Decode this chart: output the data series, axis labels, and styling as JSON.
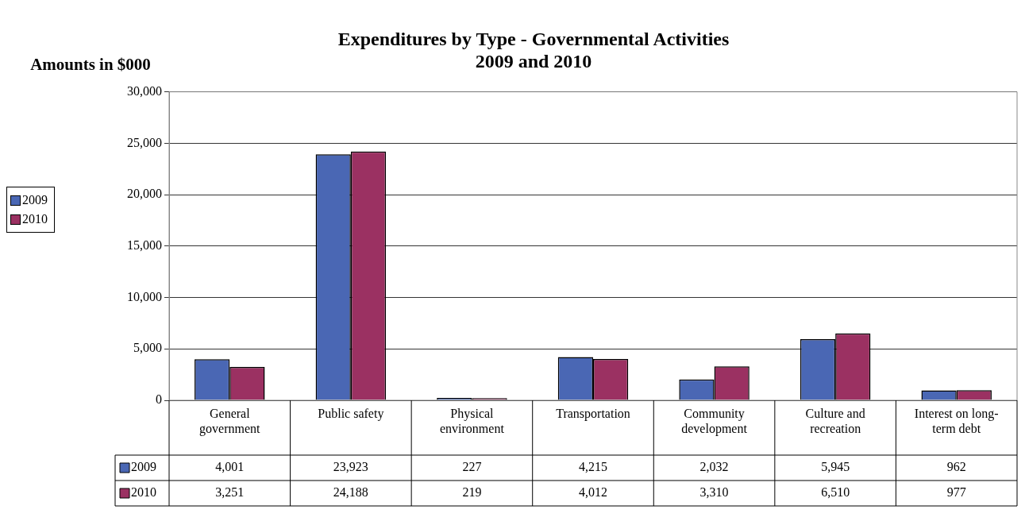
{
  "chart_data": {
    "type": "bar",
    "title": "Expenditures by Type - Governmental Activities\n2009 and 2010",
    "ylabel": "Amounts in $000",
    "categories": [
      "General government",
      "Public safety",
      "Physical environment",
      "Transportation",
      "Community development",
      "Culture and recreation",
      "Interest on long-term debt"
    ],
    "series": [
      {
        "name": "2009",
        "color": "#4a67b4",
        "values": [
          4001,
          23923,
          227,
          4215,
          2032,
          5945,
          962
        ],
        "value_labels": [
          "4,001",
          "23,923",
          "227",
          "4,215",
          "2,032",
          "5,945",
          "962"
        ]
      },
      {
        "name": "2010",
        "color": "#9b3162",
        "values": [
          3251,
          24188,
          219,
          4012,
          3310,
          6510,
          977
        ],
        "value_labels": [
          "3,251",
          "24,188",
          "219",
          "4,012",
          "3,310",
          "6,510",
          "977"
        ]
      }
    ],
    "ylim": [
      0,
      30000
    ],
    "yticks": [
      0,
      {
        "value": 5000,
        "label": "5,000"
      },
      {
        "value": 10000,
        "label": "10,000"
      },
      {
        "value": 15000,
        "label": "15,000"
      },
      {
        "value": 20000,
        "label": "20,000"
      },
      {
        "value": 25000,
        "label": "25,000"
      },
      {
        "value": 30000,
        "label": "30,000"
      }
    ],
    "grid": "y",
    "legend": "left"
  }
}
